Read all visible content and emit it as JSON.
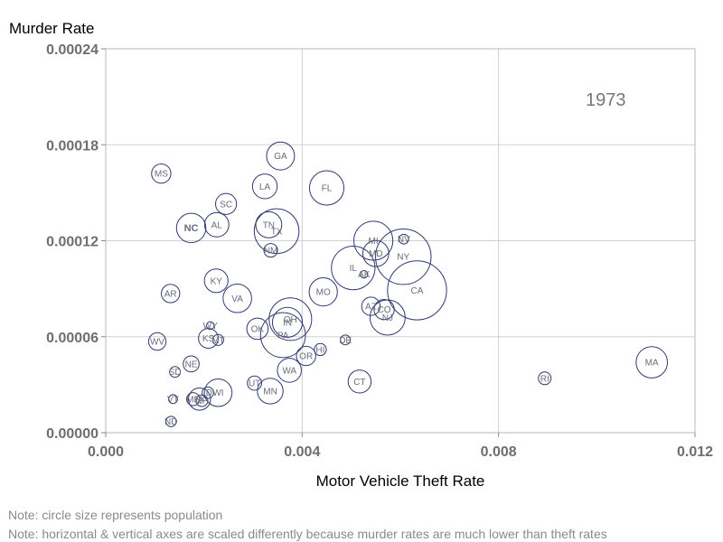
{
  "chart_data": {
    "type": "scatter",
    "title": "",
    "xlabel": "Motor Vehicle Theft Rate",
    "ylabel": "Murder Rate",
    "xlim": [
      0,
      0.012
    ],
    "ylim": [
      0,
      0.00024
    ],
    "x_ticks": [
      "0.000",
      "0.004",
      "0.008",
      "0.012"
    ],
    "y_ticks": [
      "0.00000",
      "0.00006",
      "0.00012",
      "0.00018",
      "0.00024"
    ],
    "grid": true,
    "annotation": "1973",
    "highlight": {
      "label": "NC",
      "color": "#ff0000"
    },
    "bubble_color": "#2e3a72",
    "points": [
      {
        "label": "GA",
        "x": 0.00356,
        "y": 0.000173,
        "size": 4.6
      },
      {
        "label": "MS",
        "x": 0.00113,
        "y": 0.000162,
        "size": 2.2
      },
      {
        "label": "FL",
        "x": 0.0045,
        "y": 0.000153,
        "size": 7.0
      },
      {
        "label": "LA",
        "x": 0.00324,
        "y": 0.000154,
        "size": 3.6
      },
      {
        "label": "SC",
        "x": 0.00245,
        "y": 0.000143,
        "size": 2.6
      },
      {
        "label": "NC",
        "x": 0.00174,
        "y": 0.000128,
        "size": 5.1
      },
      {
        "label": "AL",
        "x": 0.00226,
        "y": 0.00013,
        "size": 3.5
      },
      {
        "label": "TN",
        "x": 0.00332,
        "y": 0.00013,
        "size": 4.0
      },
      {
        "label": "TX",
        "x": 0.00348,
        "y": 0.000126,
        "size": 11.8
      },
      {
        "label": "NM",
        "x": 0.00336,
        "y": 0.000114,
        "size": 1.1
      },
      {
        "label": "MI",
        "x": 0.00545,
        "y": 0.00012,
        "size": 9.0
      },
      {
        "label": "NV",
        "x": 0.00607,
        "y": 0.000121,
        "size": 0.55
      },
      {
        "label": "MD",
        "x": 0.0055,
        "y": 0.000112,
        "size": 4.0
      },
      {
        "label": "NY",
        "x": 0.00606,
        "y": 0.00011,
        "size": 18.2
      },
      {
        "label": "IL",
        "x": 0.00504,
        "y": 0.000103,
        "size": 11.2
      },
      {
        "label": "AK",
        "x": 0.00526,
        "y": 9.9e-05,
        "size": 0.33
      },
      {
        "label": "CA",
        "x": 0.00634,
        "y": 8.9e-05,
        "size": 20.6
      },
      {
        "label": "KY",
        "x": 0.00225,
        "y": 9.5e-05,
        "size": 3.3
      },
      {
        "label": "VA",
        "x": 0.00268,
        "y": 8.4e-05,
        "size": 4.8
      },
      {
        "label": "AR",
        "x": 0.00132,
        "y": 8.7e-05,
        "size": 2.0
      },
      {
        "label": "MO",
        "x": 0.00443,
        "y": 8.8e-05,
        "size": 4.7
      },
      {
        "label": "AZ",
        "x": 0.0054,
        "y": 7.9e-05,
        "size": 2.0
      },
      {
        "label": "CO",
        "x": 0.00567,
        "y": 7.7e-05,
        "size": 2.4
      },
      {
        "label": "NJ",
        "x": 0.00574,
        "y": 7.2e-05,
        "size": 7.3
      },
      {
        "label": "OH",
        "x": 0.00376,
        "y": 7.1e-05,
        "size": 10.7
      },
      {
        "label": "IN",
        "x": 0.0037,
        "y": 6.9e-05,
        "size": 5.3
      },
      {
        "label": "PA",
        "x": 0.00361,
        "y": 6.1e-05,
        "size": 11.9
      },
      {
        "label": "OK",
        "x": 0.00309,
        "y": 6.5e-05,
        "size": 2.7
      },
      {
        "label": "WY",
        "x": 0.00213,
        "y": 6.7e-05,
        "size": 0.35
      },
      {
        "label": "KS",
        "x": 0.00209,
        "y": 5.9e-05,
        "size": 2.3
      },
      {
        "label": "MT",
        "x": 0.00229,
        "y": 5.8e-05,
        "size": 0.7
      },
      {
        "label": "WV",
        "x": 0.00105,
        "y": 5.7e-05,
        "size": 1.8
      },
      {
        "label": "DE",
        "x": 0.00488,
        "y": 5.8e-05,
        "size": 0.57
      },
      {
        "label": "HI",
        "x": 0.00437,
        "y": 5.2e-05,
        "size": 0.85
      },
      {
        "label": "OR",
        "x": 0.00408,
        "y": 4.8e-05,
        "size": 2.2
      },
      {
        "label": "NE",
        "x": 0.00174,
        "y": 4.3e-05,
        "size": 1.5
      },
      {
        "label": "SD",
        "x": 0.00141,
        "y": 3.8e-05,
        "size": 0.68
      },
      {
        "label": "WA",
        "x": 0.00374,
        "y": 3.9e-05,
        "size": 3.4
      },
      {
        "label": "CT",
        "x": 0.00517,
        "y": 3.2e-05,
        "size": 3.1
      },
      {
        "label": "UT",
        "x": 0.00303,
        "y": 3.1e-05,
        "size": 1.2
      },
      {
        "label": "MN",
        "x": 0.00335,
        "y": 2.6e-05,
        "size": 3.9
      },
      {
        "label": "WI",
        "x": 0.00229,
        "y": 2.5e-05,
        "size": 4.5
      },
      {
        "label": "ID",
        "x": 0.00208,
        "y": 2.5e-05,
        "size": 0.77
      },
      {
        "label": "IA",
        "x": 0.00191,
        "y": 2.1e-05,
        "size": 2.9
      },
      {
        "label": "ME",
        "x": 0.00178,
        "y": 2.1e-05,
        "size": 1.0
      },
      {
        "label": "NH",
        "x": 0.00196,
        "y": 2e-05,
        "size": 0.8
      },
      {
        "label": "VT",
        "x": 0.00137,
        "y": 2.1e-05,
        "size": 0.46
      },
      {
        "label": "ND",
        "x": 0.00133,
        "y": 7e-06,
        "size": 0.63
      },
      {
        "label": "RI",
        "x": 0.00894,
        "y": 3.4e-05,
        "size": 0.95
      },
      {
        "label": "MA",
        "x": 0.01112,
        "y": 4.4e-05,
        "size": 5.8
      }
    ]
  },
  "notes": [
    "Note: circle size represents population",
    "Note: horizontal & vertical axes are scaled differently because murder rates are much lower than theft rates"
  ]
}
